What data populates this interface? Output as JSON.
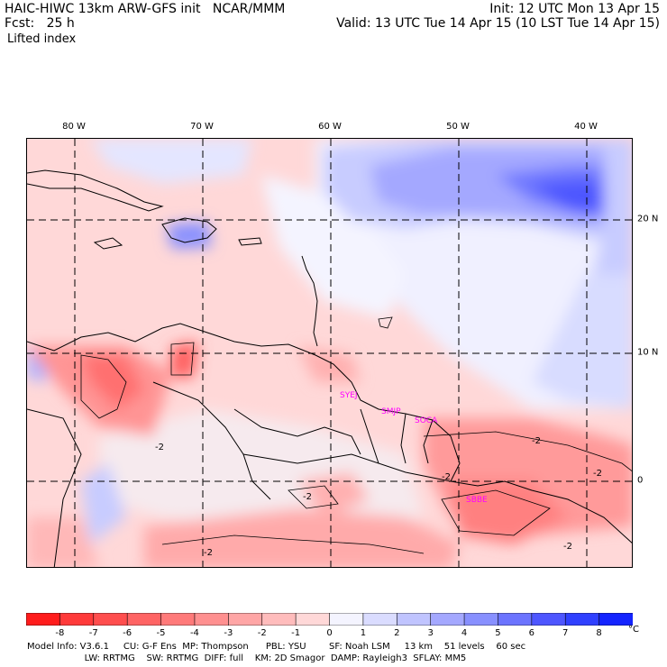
{
  "header": {
    "left_line1": "HAIC-HIWC 13km ARW-GFS init   NCAR/MMM",
    "left_line2": "Fcst:   25 h",
    "right_line1": "Init: 12 UTC Mon 13 Apr 15",
    "right_line2": "Valid: 13 UTC Tue 14 Apr 15 (10 LST Tue 14 Apr 15)",
    "field": "Lifted index"
  },
  "map": {
    "longitude_labels": [
      "80 W",
      "70 W",
      "60 W",
      "50 W",
      "40 W"
    ],
    "latitude_labels": [
      "20 N",
      "10 N",
      "0"
    ],
    "site_labels": [
      "SYEJ",
      "SMJP",
      "SOCA",
      "SBBE"
    ],
    "contour_labels": [
      "-2",
      "-2",
      "-2",
      "-2",
      "-2",
      "-2",
      "-2"
    ]
  },
  "colorbar": {
    "ticks": [
      "-8",
      "-7",
      "-6",
      "-5",
      "-4",
      "-3",
      "-2",
      "-1",
      "0",
      "1",
      "2",
      "3",
      "4",
      "5",
      "6",
      "7",
      "8"
    ],
    "unit": "°C",
    "colors": [
      "#ff1c1c",
      "#ff3a3a",
      "#ff4e4e",
      "#ff6464",
      "#ff7a7a",
      "#ff9090",
      "#ffa6a6",
      "#ffbcbc",
      "#ffd8d8",
      "#f4f4ff",
      "#dadcff",
      "#c0c4ff",
      "#a4a8ff",
      "#8890ff",
      "#6c74ff",
      "#4e56ff",
      "#3040ff",
      "#1424ff"
    ]
  },
  "footer": {
    "line1": "Model Info: V3.6.1     CU: G-F Ens  MP: Thompson      PBL: YSU        SF: Noah LSM     13 km    51 levels    60 sec",
    "line2": "                    LW: RRTMG    SW: RRTMG  DIFF: full    KM: 2D Smagor  DAMP: Rayleigh3  SFLAY: MM5"
  }
}
